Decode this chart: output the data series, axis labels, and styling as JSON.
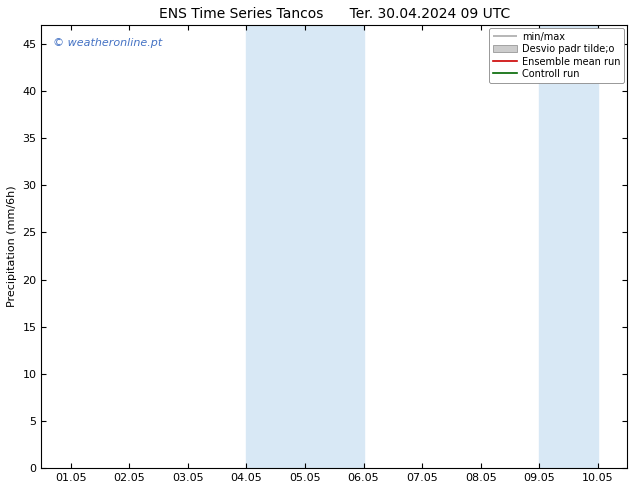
{
  "title": "ENS Time Series Tancos      Ter. 30.04.2024 09 UTC",
  "ylabel": "Precipitation (mm/6h)",
  "ylim": [
    0,
    47
  ],
  "yticks": [
    0,
    5,
    10,
    15,
    20,
    25,
    30,
    35,
    40,
    45
  ],
  "x_labels": [
    "01.05",
    "02.05",
    "03.05",
    "04.05",
    "05.05",
    "06.05",
    "07.05",
    "08.05",
    "09.05",
    "10.05"
  ],
  "x_positions": [
    0,
    1,
    2,
    3,
    4,
    5,
    6,
    7,
    8,
    9
  ],
  "xlim": [
    -0.5,
    9.5
  ],
  "shaded_bands": [
    {
      "xmin": 3.0,
      "xmax": 4.0
    },
    {
      "xmin": 4.0,
      "xmax": 5.0
    },
    {
      "xmin": 8.0,
      "xmax": 9.0
    }
  ],
  "shade_color": "#d8e8f5",
  "background_color": "#ffffff",
  "plot_bg_color": "#ffffff",
  "watermark": "© weatheronline.pt",
  "watermark_color": "#4472c4",
  "legend_labels": [
    "min/max",
    "Desvio padr tilde;o",
    "Ensemble mean run",
    "Controll run"
  ],
  "title_fontsize": 10,
  "axis_fontsize": 8,
  "tick_fontsize": 8,
  "legend_fontsize": 7
}
